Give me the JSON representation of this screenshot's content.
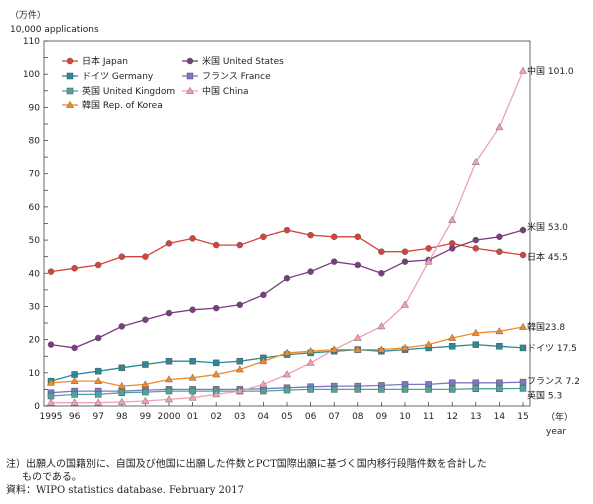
{
  "chart_data": {
    "type": "line",
    "unit_line1": "（万件）",
    "unit_line2": "10,000 applications",
    "x_unit_line1": "（年）",
    "x_unit_line2": "year",
    "x": [
      "1995",
      "96",
      "97",
      "98",
      "99",
      "2000",
      "01",
      "02",
      "03",
      "04",
      "05",
      "06",
      "07",
      "08",
      "09",
      "10",
      "11",
      "12",
      "13",
      "14",
      "15"
    ],
    "ylim": [
      0,
      110
    ],
    "yticks": [
      0,
      5,
      10,
      15,
      20,
      25,
      30,
      35,
      40,
      45,
      50,
      55,
      60,
      65,
      70,
      75,
      80,
      85,
      90,
      95,
      100,
      105,
      110
    ],
    "grid": "off",
    "legend_placement": "top-left",
    "series": [
      {
        "name": "日本 Japan",
        "color": "#d7433c",
        "marker": "circle",
        "values": [
          40.5,
          41.5,
          42.5,
          45.0,
          45.0,
          49.0,
          50.5,
          48.5,
          48.5,
          51.0,
          53.0,
          51.5,
          51.0,
          51.0,
          46.5,
          46.5,
          47.5,
          49.0,
          47.5,
          46.5,
          45.5
        ],
        "end_label": "日本 45.5"
      },
      {
        "name": "米国 United States",
        "color": "#7a3d82",
        "marker": "circle",
        "values": [
          18.5,
          17.5,
          20.5,
          24.0,
          26.0,
          28.0,
          29.0,
          29.5,
          30.5,
          33.5,
          38.5,
          40.5,
          43.5,
          42.5,
          40.0,
          43.5,
          44.0,
          47.5,
          50.0,
          51.0,
          53.0
        ],
        "end_label": "米国 53.0"
      },
      {
        "name": "ドイツ Germany",
        "color": "#2a8a96",
        "marker": "square",
        "values": [
          7.5,
          9.5,
          10.5,
          11.5,
          12.5,
          13.5,
          13.5,
          13.0,
          13.5,
          14.5,
          15.5,
          16.0,
          16.5,
          17.0,
          16.5,
          17.0,
          17.5,
          18.0,
          18.5,
          18.0,
          17.5
        ],
        "end_label": "ドイツ 17.5"
      },
      {
        "name": "フランス France",
        "color": "#7b78c3",
        "marker": "square",
        "values": [
          4.0,
          4.5,
          4.5,
          4.5,
          4.8,
          5.0,
          5.0,
          5.0,
          5.0,
          5.2,
          5.5,
          5.8,
          6.0,
          6.0,
          6.2,
          6.5,
          6.5,
          7.0,
          7.0,
          7.0,
          7.2
        ],
        "end_label": "フランス 7.2"
      },
      {
        "name": "英国 United Kingdom",
        "color": "#4ea39c",
        "marker": "square",
        "values": [
          3.0,
          3.5,
          3.5,
          4.0,
          4.2,
          4.5,
          4.5,
          4.5,
          4.5,
          4.5,
          4.8,
          5.0,
          5.0,
          5.0,
          5.0,
          5.0,
          5.0,
          5.0,
          5.2,
          5.2,
          5.3
        ],
        "end_label": "英国 5.3"
      },
      {
        "name": "中国 China",
        "color": "#f0a0b4",
        "marker": "triangle",
        "values": [
          1.0,
          1.0,
          1.0,
          1.2,
          1.5,
          2.0,
          2.5,
          3.5,
          4.5,
          6.5,
          9.5,
          13.0,
          17.0,
          20.5,
          24.0,
          30.5,
          43.5,
          56.0,
          73.5,
          84.0,
          101.0
        ],
        "end_label": "中国 101.0"
      },
      {
        "name": "韓国 Rep. of Korea",
        "color": "#f08a2a",
        "marker": "triangle",
        "values": [
          7.0,
          7.5,
          7.5,
          6.0,
          6.5,
          8.0,
          8.5,
          9.5,
          11.0,
          13.5,
          16.0,
          16.5,
          17.0,
          17.0,
          17.0,
          17.5,
          18.5,
          20.5,
          22.0,
          22.5,
          23.8
        ],
        "end_label": "韓国23.8"
      }
    ]
  },
  "notes": {
    "line1": "注）出願人の国籍別に、自国及び他国に出願した件数とPCT国際出願に基づく国内移行段階件数を合計した",
    "line2": "ものである。",
    "line3": "資料：WIPO statistics database. February 2017"
  }
}
